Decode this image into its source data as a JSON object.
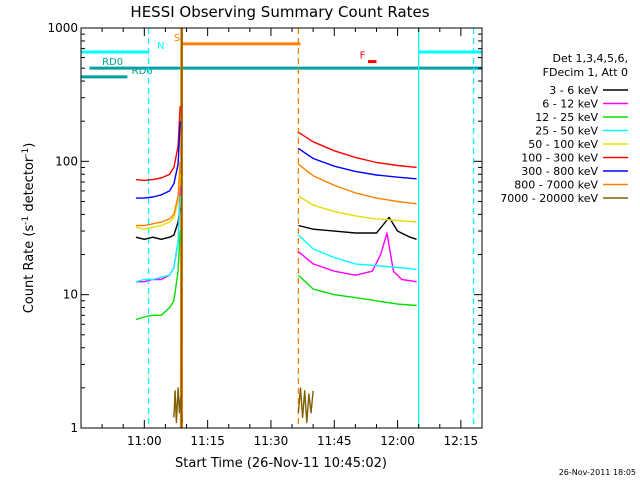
{
  "chart_data": {
    "type": "line",
    "title": "HESSI Observing Summary Count Rates",
    "xlabel": "Start Time (26-Nov-11 10:45:02)",
    "ylabel_main": "Count Rate (s",
    "ylabel_sup1": "-1",
    "ylabel_mid": " detector",
    "ylabel_sup2": "-1",
    "ylabel_end": ")",
    "yscale": "log",
    "ylim": [
      1,
      1000
    ],
    "xlim_minutes": [
      0,
      95
    ],
    "x_ticks": [
      {
        "minutes": 15,
        "label": "11:00"
      },
      {
        "minutes": 30,
        "label": "11:15"
      },
      {
        "minutes": 45,
        "label": "11:30"
      },
      {
        "minutes": 60,
        "label": "11:45"
      },
      {
        "minutes": 75,
        "label": "12:00"
      },
      {
        "minutes": 90,
        "label": "12:15"
      }
    ],
    "y_ticks": [
      {
        "value": 1,
        "label": "1"
      },
      {
        "value": 10,
        "label": "10"
      },
      {
        "value": 100,
        "label": "100"
      },
      {
        "value": 1000,
        "label": "1000"
      }
    ],
    "legend": {
      "header1": "Det 1,3,4,5,6,",
      "header2": "FDecim 1, Att 0",
      "position": "right"
    },
    "series": [
      {
        "name": "3 - 6 keV",
        "color": "#000000",
        "segments": [
          {
            "x": [
              13,
              15,
              17,
              19,
              21,
              22,
              23,
              23.5
            ],
            "y": [
              27,
              26,
              27,
              26,
              27,
              28,
              35,
              45
            ]
          },
          {
            "x": [
              51.5,
              55,
              60,
              65,
              70,
              73,
              75,
              78,
              79.5
            ],
            "y": [
              33,
              31,
              30,
              29,
              29,
              38,
              30,
              27,
              26
            ]
          }
        ]
      },
      {
        "name": "6 - 12 keV",
        "color": "#ff00ff",
        "segments": [
          {
            "x": [
              13,
              15,
              17,
              19,
              21,
              22,
              23,
              23.5
            ],
            "y": [
              12.5,
              12.5,
              13,
              13,
              14,
              16,
              25,
              65
            ]
          },
          {
            "x": [
              51.5,
              55,
              60,
              65,
              69,
              71,
              72.5,
              74,
              76,
              79.5
            ],
            "y": [
              21,
              17,
              15,
              14,
              15,
              20,
              29,
              15,
              13,
              12.5
            ]
          }
        ]
      },
      {
        "name": "12 - 25 keV",
        "color": "#00e000",
        "segments": [
          {
            "x": [
              13,
              15,
              17,
              19,
              21,
              22,
              23,
              23.5
            ],
            "y": [
              6.5,
              6.8,
              7,
              7,
              8,
              9,
              15,
              30
            ]
          },
          {
            "x": [
              51.5,
              55,
              60,
              65,
              70,
              75,
              79.5
            ],
            "y": [
              14,
              11,
              10,
              9.5,
              9,
              8.5,
              8.3
            ]
          }
        ]
      },
      {
        "name": "25 - 50 keV",
        "color": "#00ffff",
        "segments": [
          {
            "x": [
              13,
              15,
              17,
              19,
              21,
              22,
              23,
              23.5
            ],
            "y": [
              12.5,
              13,
              13,
              13.5,
              14,
              16,
              25,
              55
            ]
          },
          {
            "x": [
              51.5,
              55,
              60,
              65,
              70,
              75,
              79.5
            ],
            "y": [
              28,
              22,
              19,
              17,
              16.5,
              16,
              15.5
            ]
          }
        ]
      },
      {
        "name": "50 - 100 keV",
        "color": "#e0e000",
        "segments": [
          {
            "x": [
              13,
              15,
              17,
              19,
              21,
              22,
              23,
              23.5
            ],
            "y": [
              32,
              31,
              32,
              33,
              35,
              38,
              50,
              80
            ]
          },
          {
            "x": [
              51.5,
              55,
              60,
              65,
              70,
              75,
              79.5
            ],
            "y": [
              55,
              47,
              42,
              39,
              37,
              36,
              35
            ]
          }
        ]
      },
      {
        "name": "100 - 300 keV",
        "color": "#ff0000",
        "segments": [
          {
            "x": [
              13,
              15,
              17,
              19,
              21,
              22,
              23,
              23.5
            ],
            "y": [
              73,
              72,
              73,
              75,
              80,
              90,
              130,
              260
            ]
          },
          {
            "x": [
              51.5,
              55,
              60,
              65,
              70,
              75,
              79.5
            ],
            "y": [
              165,
              140,
              120,
              107,
              98,
              93,
              90
            ]
          }
        ]
      },
      {
        "name": "300 - 800 keV",
        "color": "#0000ff",
        "segments": [
          {
            "x": [
              13,
              15,
              17,
              19,
              21,
              22,
              23,
              23.5
            ],
            "y": [
              53,
              53,
              54,
              56,
              60,
              68,
              95,
              200
            ]
          },
          {
            "x": [
              51.5,
              55,
              60,
              65,
              70,
              75,
              79.5
            ],
            "y": [
              125,
              105,
              92,
              84,
              79,
              76,
              74
            ]
          }
        ]
      },
      {
        "name": "800 - 7000 keV",
        "color": "#ff8000",
        "segments": [
          {
            "x": [
              13,
              15,
              17,
              19,
              21,
              22,
              23,
              23.5
            ],
            "y": [
              33,
              33,
              34,
              35,
              37,
              40,
              55,
              100
            ]
          },
          {
            "x": [
              51.5,
              55,
              60,
              65,
              70,
              75,
              79.5
            ],
            "y": [
              95,
              78,
              66,
              58,
              53,
              50,
              48
            ]
          }
        ]
      },
      {
        "name": "7000 - 20000 keV",
        "color": "#806000",
        "segments": [
          {
            "x": [
              22,
              22.3,
              22.6,
              23,
              23.3,
              23.6,
              24
            ],
            "y": [
              1.2,
              1.9,
              1.1,
              2.0,
              1.3,
              1.7,
              1.1
            ]
          },
          {
            "x": [
              51.5,
              52,
              52.5,
              53,
              53.5,
              54,
              54.5,
              55
            ],
            "y": [
              1.3,
              2.0,
              1.2,
              1.9,
              1.1,
              1.8,
              1.3,
              1.9
            ]
          }
        ]
      }
    ],
    "spikes": [
      {
        "name": "spike-orange",
        "color": "#ff8000",
        "x": [
          23.6,
          23.7
        ],
        "y": [
          1,
          1000
        ]
      },
      {
        "name": "spike-olive",
        "color": "#806000",
        "x": [
          23.8,
          23.9
        ],
        "y": [
          1,
          1000
        ]
      }
    ],
    "flag_bars": [
      {
        "label": "RD0",
        "color": "#00a0a0",
        "value": 500,
        "x": [
          2,
          95
        ],
        "label_minutes": 5
      },
      {
        "label": "RD6",
        "color": "#00a0a0",
        "value": 430,
        "x": [
          0,
          11
        ],
        "label_minutes": 12
      },
      {
        "label": "N",
        "color": "#00ffff",
        "value": 660,
        "x_segments": [
          [
            0,
            16
          ],
          [
            80,
            95
          ]
        ],
        "label_minutes": 18
      },
      {
        "label": "S",
        "color": "#ff8000",
        "value": 760,
        "x_segments": [
          [
            24,
            52
          ]
        ],
        "label_minutes": 22
      },
      {
        "label": "F",
        "color": "#ff0000",
        "value": 560,
        "x_segments": [
          [
            68,
            70
          ]
        ],
        "label_minutes": 66
      }
    ],
    "vlines": [
      {
        "minutes": 16,
        "color": "#00ffff",
        "style": "dashed"
      },
      {
        "minutes": 24,
        "color": "#ff8000",
        "style": "solid"
      },
      {
        "minutes": 51.5,
        "color": "#ff8000",
        "style": "dashed"
      },
      {
        "minutes": 80,
        "color": "#00ffff",
        "style": "solid"
      },
      {
        "minutes": 93,
        "color": "#00ffff",
        "style": "dashed"
      }
    ],
    "timestamp": "26-Nov-2011 18:05"
  }
}
